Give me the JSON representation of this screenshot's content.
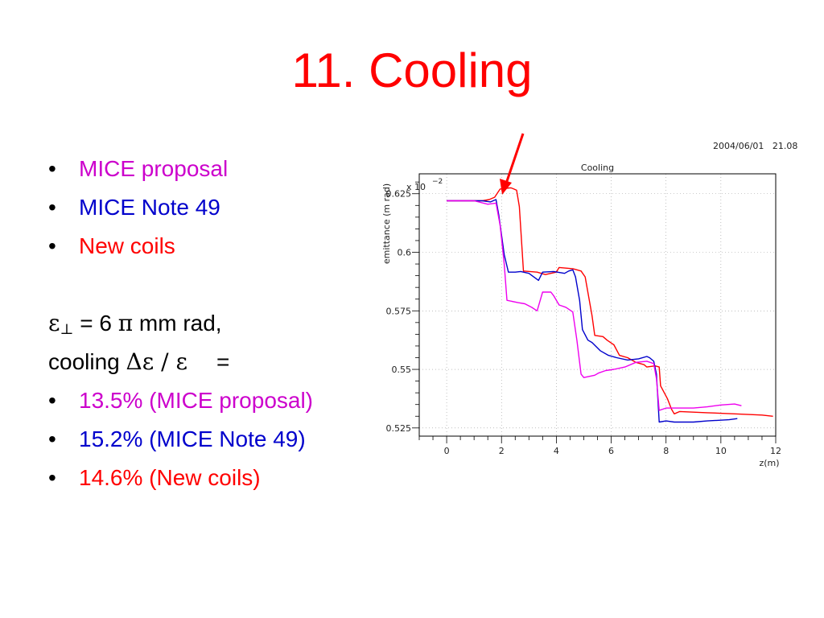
{
  "slide": {
    "title": "11. Cooling",
    "timestamp": "2004/06/01   21.08"
  },
  "bullets_top": [
    {
      "text": "MICE proposal",
      "color": "#cc00cc"
    },
    {
      "text": "MICE Note 49",
      "color": "#0000cc"
    },
    {
      "text": "New coils",
      "color": "#ff0000"
    }
  ],
  "formula": {
    "epsilon_symbol": "ε",
    "perp_symbol": "⊥",
    "line1_rest": " = 6 ",
    "pi_symbol": "π",
    "line1_units": " mm rad,",
    "line2_word": "cooling ",
    "line2_expr": "Δε / ε",
    "line2_eq": "="
  },
  "bullets_bottom": [
    {
      "text": "13.5%  (MICE proposal)",
      "color": "#cc00cc"
    },
    {
      "text": "15.2% (MICE Note 49)",
      "color": "#0000cc"
    },
    {
      "text": "14.6% (New coils)",
      "color": "#ff0000"
    }
  ],
  "chart_data": {
    "type": "line",
    "title": "Cooling",
    "xlabel": "z(m)",
    "ylabel": "emittance (m rad)",
    "y_multiplier": "x 10",
    "y_multiplier_exp": "−2",
    "xlim": [
      -1,
      12
    ],
    "ylim": [
      0.5215,
      0.6335
    ],
    "x_ticks": [
      0,
      2,
      4,
      6,
      8,
      10,
      12
    ],
    "y_ticks": [
      0.525,
      0.55,
      0.575,
      0.6,
      0.625
    ],
    "x_tick_labels": [
      "0",
      "2",
      "4",
      "6",
      "8",
      "10",
      "12"
    ],
    "y_tick_labels": [
      "0.525",
      "0.55",
      "0.575",
      "0.6",
      "0.625"
    ],
    "grid": true,
    "series": [
      {
        "color": "#ff0000",
        "points": [
          [
            0,
            0.622
          ],
          [
            1.3,
            0.622
          ],
          [
            1.55,
            0.6225
          ],
          [
            1.75,
            0.6235
          ],
          [
            1.95,
            0.627
          ],
          [
            2.3,
            0.6275
          ],
          [
            2.35,
            0.6275
          ],
          [
            2.45,
            0.627
          ],
          [
            2.55,
            0.6265
          ],
          [
            2.65,
            0.6195
          ],
          [
            2.8,
            0.592
          ],
          [
            3.3,
            0.5915
          ],
          [
            3.6,
            0.5905
          ],
          [
            4.0,
            0.5915
          ],
          [
            4.1,
            0.5935
          ],
          [
            4.6,
            0.593
          ],
          [
            4.75,
            0.5925
          ],
          [
            4.9,
            0.592
          ],
          [
            5.05,
            0.5895
          ],
          [
            5.3,
            0.573
          ],
          [
            5.4,
            0.5645
          ],
          [
            5.7,
            0.564
          ],
          [
            5.85,
            0.5625
          ],
          [
            6.1,
            0.5605
          ],
          [
            6.3,
            0.556
          ],
          [
            6.6,
            0.555
          ],
          [
            6.9,
            0.553
          ],
          [
            7.2,
            0.552
          ],
          [
            7.3,
            0.551
          ],
          [
            7.6,
            0.5515
          ],
          [
            7.75,
            0.551
          ],
          [
            7.8,
            0.543
          ],
          [
            8.05,
            0.5375
          ],
          [
            8.2,
            0.533
          ],
          [
            8.3,
            0.531
          ],
          [
            8.5,
            0.532
          ],
          [
            9.5,
            0.5315
          ],
          [
            10.5,
            0.531
          ],
          [
            11.5,
            0.5305
          ],
          [
            11.9,
            0.53
          ]
        ]
      },
      {
        "color": "#0000cc",
        "points": [
          [
            0,
            0.622
          ],
          [
            1.3,
            0.622
          ],
          [
            1.6,
            0.6215
          ],
          [
            1.8,
            0.6225
          ],
          [
            1.9,
            0.616
          ],
          [
            2.1,
            0.599
          ],
          [
            2.25,
            0.5915
          ],
          [
            2.5,
            0.5915
          ],
          [
            2.7,
            0.5918
          ],
          [
            3.0,
            0.591
          ],
          [
            3.35,
            0.588
          ],
          [
            3.5,
            0.5915
          ],
          [
            3.9,
            0.5918
          ],
          [
            4.3,
            0.591
          ],
          [
            4.45,
            0.592
          ],
          [
            4.6,
            0.5925
          ],
          [
            4.7,
            0.5895
          ],
          [
            4.85,
            0.5795
          ],
          [
            4.95,
            0.567
          ],
          [
            5.15,
            0.5625
          ],
          [
            5.3,
            0.5615
          ],
          [
            5.6,
            0.558
          ],
          [
            5.9,
            0.556
          ],
          [
            6.2,
            0.555
          ],
          [
            6.6,
            0.554
          ],
          [
            7.0,
            0.5545
          ],
          [
            7.3,
            0.5555
          ],
          [
            7.4,
            0.555
          ],
          [
            7.55,
            0.5535
          ],
          [
            7.65,
            0.548
          ],
          [
            7.75,
            0.5275
          ],
          [
            8.0,
            0.528
          ],
          [
            8.3,
            0.5275
          ],
          [
            9.0,
            0.5275
          ],
          [
            9.5,
            0.528
          ],
          [
            10.3,
            0.5285
          ],
          [
            10.6,
            0.529
          ]
        ]
      },
      {
        "color": "#ee00ee",
        "points": [
          [
            0,
            0.622
          ],
          [
            1.0,
            0.622
          ],
          [
            1.5,
            0.6205
          ],
          [
            1.8,
            0.621
          ],
          [
            1.95,
            0.6115
          ],
          [
            2.1,
            0.595
          ],
          [
            2.2,
            0.5795
          ],
          [
            2.6,
            0.5785
          ],
          [
            2.85,
            0.578
          ],
          [
            3.1,
            0.5765
          ],
          [
            3.3,
            0.575
          ],
          [
            3.5,
            0.583
          ],
          [
            3.8,
            0.583
          ],
          [
            3.9,
            0.5815
          ],
          [
            4.1,
            0.5775
          ],
          [
            4.35,
            0.5765
          ],
          [
            4.6,
            0.5745
          ],
          [
            4.75,
            0.5625
          ],
          [
            4.9,
            0.548
          ],
          [
            5.0,
            0.5465
          ],
          [
            5.4,
            0.5475
          ],
          [
            5.55,
            0.5485
          ],
          [
            5.8,
            0.5495
          ],
          [
            6.1,
            0.55
          ],
          [
            6.5,
            0.551
          ],
          [
            6.9,
            0.553
          ],
          [
            7.3,
            0.5535
          ],
          [
            7.55,
            0.5525
          ],
          [
            7.65,
            0.546
          ],
          [
            7.75,
            0.5325
          ],
          [
            8.0,
            0.5335
          ],
          [
            8.5,
            0.5335
          ],
          [
            9.0,
            0.5335
          ],
          [
            9.5,
            0.534
          ],
          [
            10.0,
            0.5348
          ],
          [
            10.5,
            0.5352
          ],
          [
            10.75,
            0.5345
          ]
        ]
      }
    ]
  }
}
